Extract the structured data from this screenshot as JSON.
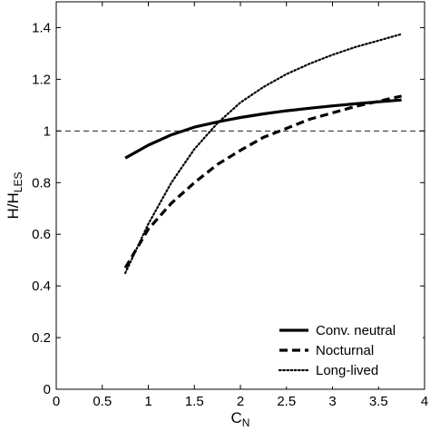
{
  "chart_data": {
    "type": "line",
    "xlabel": "C",
    "xlabel_sub": "N",
    "ylabel": "H/H",
    "ylabel_sub": "LES",
    "xlim": [
      0,
      4
    ],
    "ylim": [
      0,
      1.5
    ],
    "x_ticks": [
      0,
      0.5,
      1,
      1.5,
      2,
      2.5,
      3,
      3.5,
      4
    ],
    "x_tick_labels": [
      "0",
      "0.5",
      "1",
      "1.5",
      "2",
      "2.5",
      "3",
      "3.5",
      "4"
    ],
    "y_ticks": [
      0,
      0.2,
      0.4,
      0.6,
      0.8,
      1.0,
      1.2,
      1.4
    ],
    "y_tick_labels": [
      "0",
      "0.2",
      "0.4",
      "0.6",
      "0.8",
      "1",
      "1.2",
      "1.4"
    ],
    "reference_line": {
      "y": 1.0,
      "style": "dashed"
    },
    "grid": false,
    "legend_position": "bottom-right",
    "series": [
      {
        "name": "Conv. neutral",
        "style": "solid",
        "x": [
          0.75,
          1.0,
          1.25,
          1.5,
          1.75,
          2.0,
          2.25,
          2.5,
          2.75,
          3.0,
          3.25,
          3.5,
          3.75
        ],
        "y": [
          0.895,
          0.945,
          0.985,
          1.015,
          1.035,
          1.052,
          1.066,
          1.078,
          1.088,
          1.097,
          1.105,
          1.113,
          1.12
        ]
      },
      {
        "name": "Nocturnal",
        "style": "dashed",
        "x": [
          0.75,
          1.0,
          1.25,
          1.5,
          1.75,
          2.0,
          2.25,
          2.5,
          2.75,
          3.0,
          3.25,
          3.5,
          3.75
        ],
        "y": [
          0.47,
          0.62,
          0.72,
          0.8,
          0.87,
          0.925,
          0.975,
          1.01,
          1.045,
          1.07,
          1.095,
          1.115,
          1.135
        ]
      },
      {
        "name": "Long-lived",
        "style": "dotted",
        "x": [
          0.75,
          1.0,
          1.25,
          1.5,
          1.75,
          2.0,
          2.25,
          2.5,
          2.75,
          3.0,
          3.25,
          3.5,
          3.75
        ],
        "y": [
          0.45,
          0.64,
          0.8,
          0.93,
          1.03,
          1.11,
          1.17,
          1.22,
          1.26,
          1.295,
          1.325,
          1.35,
          1.375
        ]
      }
    ]
  }
}
